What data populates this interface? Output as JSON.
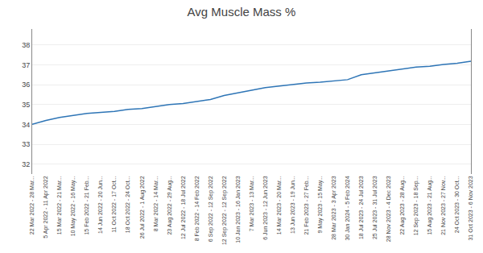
{
  "chart_data": {
    "type": "line",
    "title": "Avg Muscle Mass %",
    "categories": [
      "22 Mar 2022 - 28 Mar...",
      "5 Apr 2022 - 11 Apr 2022",
      "15 Mar 2022 - 21 Mar...",
      "10 May 2022 - 16 May...",
      "15 Feb 2022 - 21 Feb...",
      "14 Jun 2022 - 20 Jun...",
      "11 Oct 2022 - 17 Oct...",
      "18 Oct 2022 - 24 Oct...",
      "26 Jul 2022 - 1 Aug 2022",
      "8 Mar 2022 - 14 Mar...",
      "23 Aug 2022 - 29 Aug...",
      "12 Jul 2022 - 18 Jul 2022",
      "8 Feb 2022 - 14 Feb 2022",
      "6 Sep 2022 - 12 Sep 2022",
      "12 Sep 2022 - 12 Sep 2022",
      "10 Jan 2023 - 16 Jan 2023",
      "7 Mar 2023 - 13 Mar...",
      "6 Jun 2023 - 12 Jun 2023",
      "14 Mar 2023 - 20 Mar...",
      "13 Jun 2023 - 19 Jun...",
      "21 Feb 2023 - 27 Feb...",
      "9 May 2023 - 15 May...",
      "28 Mar 2023 - 3 Apr 2023",
      "30 Jan 2024 - 5 Feb 2024",
      "18 Jul 2023 - 24 Jul 2023",
      "25 Jul 2023 - 31 Jul 2023",
      "28 Nov 2023 - 4 Dec 2023",
      "22 Aug 2023 - 28 Aug...",
      "12 Sep 2023 - 18 Sep...",
      "15 Aug 2023 - 21 Aug...",
      "21 Nov 2023 - 27 Nov...",
      "24 Oct 2023 - 30 Oct...",
      "31 Oct 2023 - 6 Nov 2023"
    ],
    "values": [
      34.0,
      34.2,
      34.35,
      34.45,
      34.55,
      34.6,
      34.65,
      34.75,
      34.8,
      34.9,
      35.0,
      35.05,
      35.15,
      35.25,
      35.45,
      35.6,
      35.72,
      35.85,
      35.92,
      36.02,
      36.08,
      36.12,
      36.18,
      36.25,
      36.5,
      36.6,
      36.7,
      36.78,
      36.88,
      36.92,
      37.02,
      37.08,
      37.18
    ],
    "color": "#2E75B6",
    "ylim": [
      31.5,
      38.8
    ],
    "yticks": [
      32,
      33,
      34,
      35,
      36,
      37,
      38
    ],
    "grid": true
  }
}
